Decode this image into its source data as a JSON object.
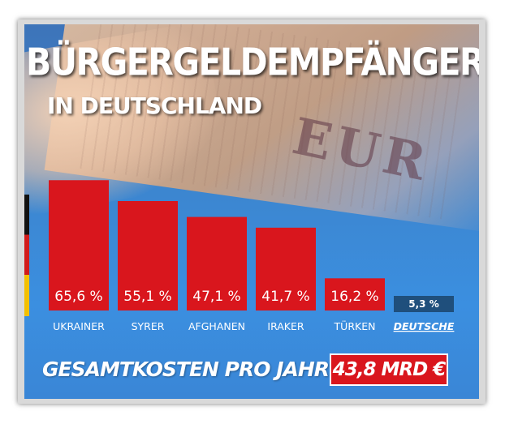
{
  "chart_data": {
    "type": "bar",
    "title": "BÜRGERGELDEMPFÄNGER",
    "subtitle": "IN DEUTSCHLAND",
    "categories": [
      "UKRAINER",
      "SYRER",
      "AFGHANEN",
      "IRAKER",
      "TÜRKEN",
      "DEUTSCHE"
    ],
    "values": [
      65.6,
      55.1,
      47.1,
      41.7,
      16.2,
      5.3
    ],
    "value_labels": [
      "65,6 %",
      "55,1 %",
      "47,1 %",
      "41,7 %",
      "16,2 %",
      "5,3 %"
    ],
    "ylim": [
      0,
      70
    ],
    "grid": false,
    "colors": {
      "bar": "#d9161d",
      "bar_highlight": "#1f4f7c",
      "background": "#3b8fe0"
    }
  },
  "footer": {
    "label": "GESAMTKOSTEN PRO JAHR",
    "total": "43,8 MRD €"
  }
}
